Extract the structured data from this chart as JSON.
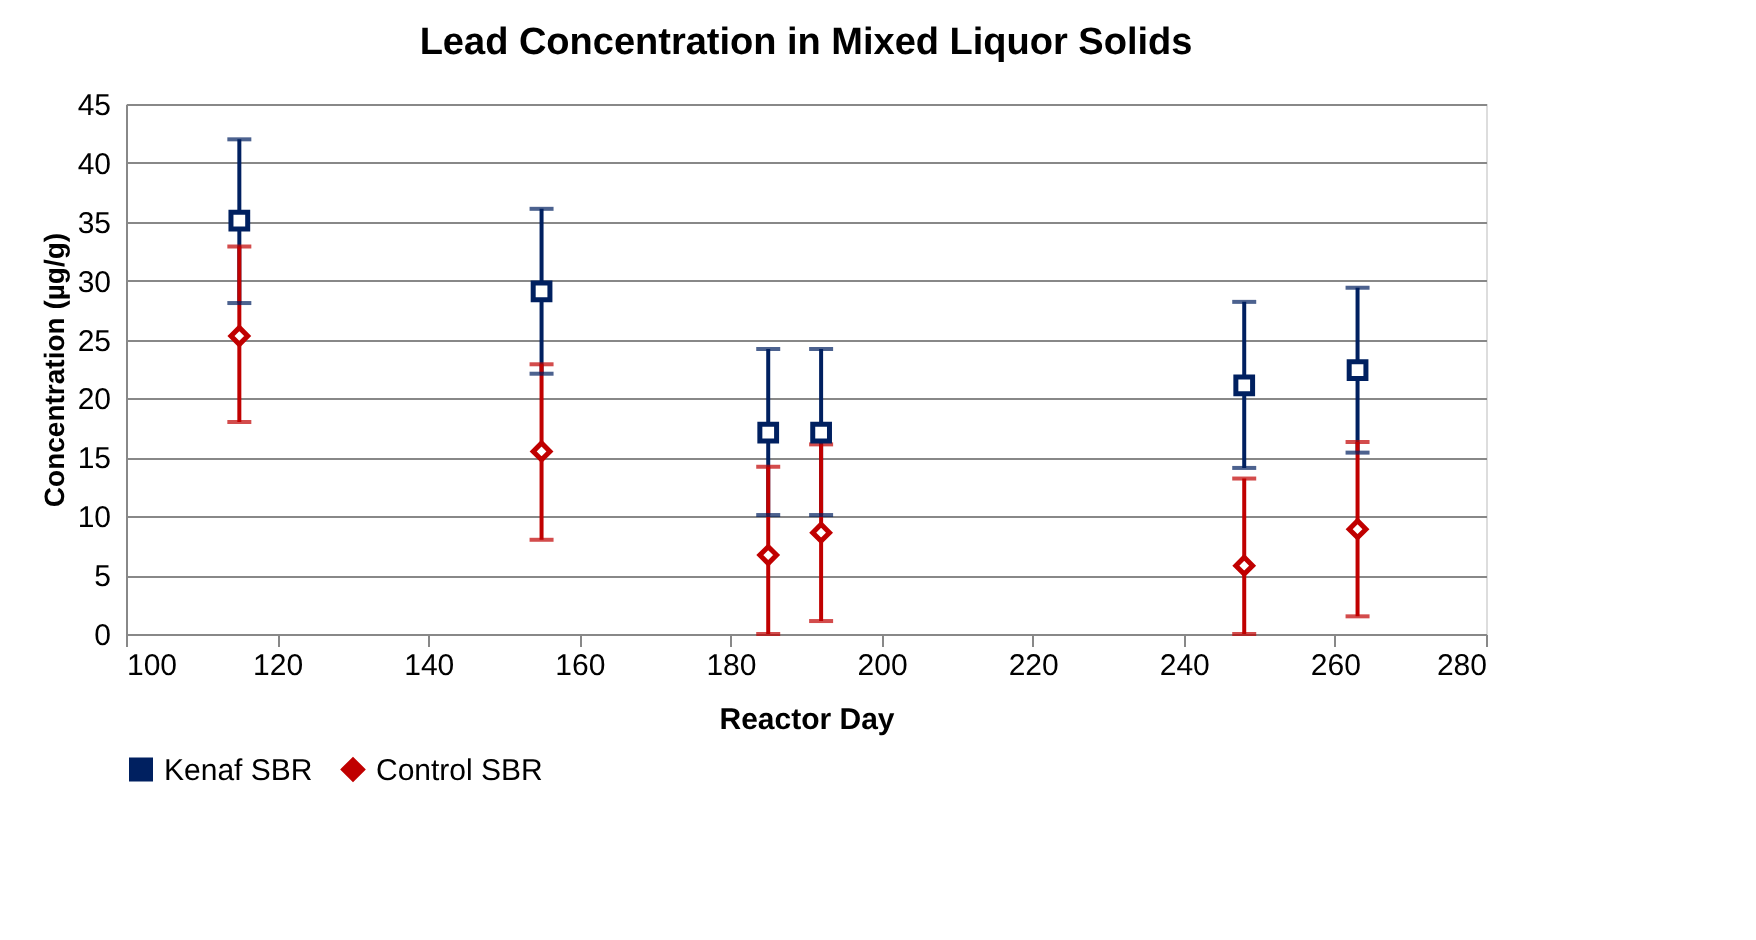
{
  "chart_data": {
    "type": "scatter",
    "title": "Lead Concentration in Mixed Liquor Solids",
    "xlabel": "Reactor Day",
    "ylabel": "Concentration (µg/g)",
    "xlim": [
      100,
      280
    ],
    "xticks": [
      100,
      120,
      140,
      160,
      180,
      200,
      220,
      240,
      260,
      280
    ],
    "ylim": [
      0,
      45
    ],
    "yticks": [
      0,
      5,
      10,
      15,
      20,
      25,
      30,
      35,
      40,
      45
    ],
    "grid": "y",
    "legend": "bottom",
    "series": [
      {
        "name": "Kenaf SBR",
        "color": "#002060",
        "marker": "square",
        "x": [
          115,
          155,
          185,
          192,
          248,
          263
        ],
        "values": [
          35.1,
          29.1,
          17.1,
          17.1,
          21.1,
          22.4
        ],
        "errors": [
          [
            28.1,
            42.0
          ],
          [
            22.1,
            36.1
          ],
          [
            10.1,
            24.2
          ],
          [
            10.1,
            24.2
          ],
          [
            14.1,
            28.2
          ],
          [
            15.4,
            29.4
          ]
        ]
      },
      {
        "name": "Control SBR",
        "color": "#c00000",
        "marker": "diamond",
        "x": [
          115,
          155,
          185,
          192,
          248,
          263
        ],
        "values": [
          25.3,
          15.5,
          6.7,
          8.6,
          5.8,
          8.9
        ],
        "errors": [
          [
            18.0,
            32.9
          ],
          [
            8.0,
            22.9
          ],
          [
            0,
            14.2
          ],
          [
            1.1,
            16.1
          ],
          [
            0,
            13.2
          ],
          [
            1.5,
            16.3
          ]
        ]
      }
    ]
  }
}
